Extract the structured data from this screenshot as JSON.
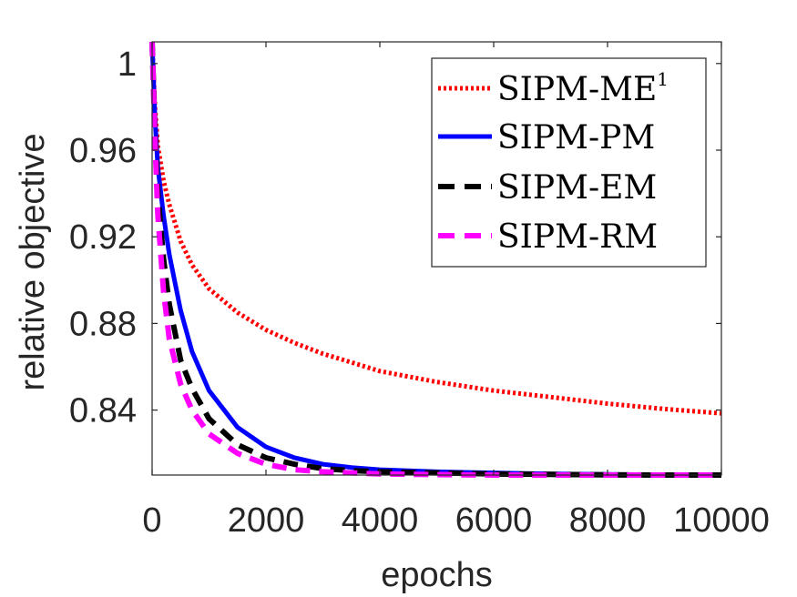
{
  "chart_data": {
    "type": "line",
    "xlabel": "epochs",
    "ylabel": "relative objective",
    "xlim": [
      0,
      10000
    ],
    "ylim": [
      0.81,
      1.01
    ],
    "xticks": [
      0,
      2000,
      4000,
      6000,
      8000,
      10000
    ],
    "xtick_labels": [
      "0",
      "2000",
      "4000",
      "6000",
      "8000",
      "10000"
    ],
    "yticks": [
      0.84,
      0.88,
      0.92,
      0.96,
      1.0
    ],
    "ytick_labels": [
      "0.84",
      "0.88",
      "0.92",
      "0.96",
      "1"
    ],
    "grid": false,
    "legend_position": "top-right",
    "series": [
      {
        "name": "SIPM-ME",
        "name_superscript": "1",
        "color": "#ff0000",
        "style": "dotted",
        "x": [
          0,
          50,
          100,
          200,
          300,
          500,
          700,
          1000,
          1500,
          2000,
          2500,
          3000,
          3500,
          4000,
          5000,
          6000,
          7000,
          8000,
          9000,
          10000
        ],
        "y": [
          1.01,
          0.98,
          0.962,
          0.946,
          0.935,
          0.918,
          0.907,
          0.896,
          0.885,
          0.877,
          0.871,
          0.866,
          0.862,
          0.858,
          0.853,
          0.849,
          0.846,
          0.843,
          0.8405,
          0.8385
        ]
      },
      {
        "name": "SIPM-PM",
        "color": "#0000ff",
        "style": "solid",
        "x": [
          0,
          50,
          100,
          200,
          300,
          500,
          700,
          1000,
          1500,
          2000,
          2500,
          3000,
          3500,
          4000,
          5000,
          6000,
          7000,
          8000,
          9000,
          10000
        ],
        "y": [
          1.01,
          0.975,
          0.952,
          0.93,
          0.912,
          0.886,
          0.867,
          0.849,
          0.832,
          0.823,
          0.818,
          0.815,
          0.8135,
          0.8125,
          0.8115,
          0.811,
          0.8105,
          0.8103,
          0.8101,
          0.81
        ]
      },
      {
        "name": "SIPM-EM",
        "color": "#000000",
        "style": "dashed",
        "x": [
          0,
          50,
          100,
          200,
          300,
          500,
          700,
          1000,
          1500,
          2000,
          2500,
          3000,
          3500,
          4000,
          5000,
          6000,
          7000,
          8000,
          9000,
          10000
        ],
        "y": [
          1.01,
          0.97,
          0.94,
          0.91,
          0.889,
          0.863,
          0.85,
          0.836,
          0.824,
          0.818,
          0.815,
          0.813,
          0.812,
          0.8115,
          0.811,
          0.8105,
          0.8103,
          0.8101,
          0.81,
          0.81
        ]
      },
      {
        "name": "SIPM-RM",
        "color": "#ff00ff",
        "style": "dashed",
        "x": [
          0,
          50,
          100,
          200,
          300,
          500,
          700,
          1000,
          1500,
          2000,
          2500,
          3000,
          3500,
          4000,
          5000,
          6000,
          7000,
          8000,
          9000,
          10000
        ],
        "y": [
          1.01,
          0.965,
          0.93,
          0.895,
          0.873,
          0.852,
          0.84,
          0.829,
          0.82,
          0.815,
          0.8125,
          0.8115,
          0.811,
          0.8105,
          0.8102,
          0.81,
          0.81,
          0.81,
          0.81,
          0.81
        ]
      }
    ]
  }
}
